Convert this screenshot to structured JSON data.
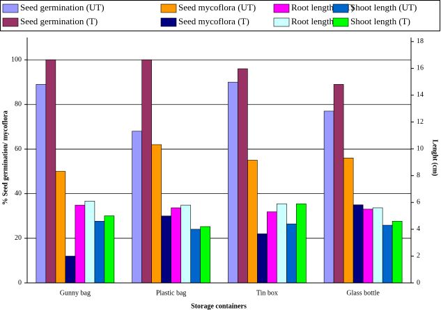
{
  "chart_data": {
    "type": "bar",
    "x_label": "Storage containers",
    "y_label": "% Seed germination/ mycoflora",
    "y2_label": "Lenght (cm)",
    "categories": [
      "Gunny bag",
      "Plastic bag",
      "Tin box",
      "Glass bottle"
    ],
    "ylim": [
      0,
      110
    ],
    "yticks": [
      0,
      20,
      40,
      60,
      80,
      100
    ],
    "y2lim": [
      0,
      18.3
    ],
    "y2ticks": [
      0,
      2,
      4,
      6,
      8,
      10,
      12,
      14,
      16,
      18
    ],
    "grid": true,
    "series": [
      {
        "name": "Seed germination (UT)",
        "color": "#9999ff",
        "values": [
          89,
          68,
          90,
          77
        ]
      },
      {
        "name": "Seed mycoflora (UT)",
        "color": "#ff9900",
        "values": [
          50,
          62,
          55,
          56
        ]
      },
      {
        "name": "Root length (UT)",
        "color": "#ff00ff",
        "axis": "y2",
        "values": [
          5.8,
          5.6,
          5.3,
          5.5
        ]
      },
      {
        "name": "Shoot length (UT)",
        "color": "#0066cc",
        "axis": "y2",
        "values": [
          4.6,
          4.0,
          4.4,
          4.3
        ]
      },
      {
        "name": "Seed germination (T)",
        "color": "#993366",
        "values": [
          100,
          100,
          96,
          89
        ]
      },
      {
        "name": "Seed mycoflora (T)",
        "color": "#000080",
        "values": [
          12,
          30,
          22,
          35
        ]
      },
      {
        "name": "Root length (T)",
        "color": "#ccffff",
        "axis": "y2",
        "values": [
          6.1,
          5.8,
          5.9,
          5.6
        ]
      },
      {
        "name": "Shoot length (T)",
        "color": "#00ff00",
        "axis": "y2",
        "values": [
          5.0,
          4.2,
          5.9,
          4.6
        ]
      }
    ]
  }
}
